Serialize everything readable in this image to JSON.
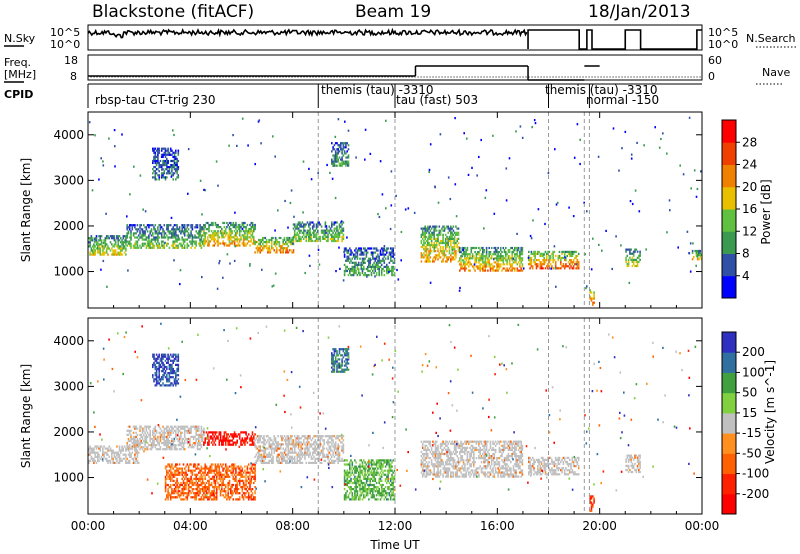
{
  "header": {
    "station": "Blackstone (fitACF)",
    "beam": "Beam 19",
    "date": "18/Jan/2013"
  },
  "side_labels": {
    "nsky": "N.Sky",
    "nsearch": "N.Search",
    "freq_line1": "Freq.",
    "freq_line2": "[MHz]",
    "nave": "Nave",
    "cpid": "CPID",
    "nsky_ticks": [
      "10^5",
      "10^0"
    ],
    "nsearch_ticks": [
      "10^5",
      "10^0"
    ],
    "freq_ticks": [
      "18",
      "8"
    ],
    "nave_ticks": [
      "60",
      "0"
    ]
  },
  "colors": {
    "power_scale": [
      "#0000ff",
      "#3050a8",
      "#3a9a50",
      "#60c040",
      "#e8c000",
      "#f08000",
      "#f04000",
      "#ff0000"
    ],
    "velocity_scale": [
      "#3030c0",
      "#3070a0",
      "#40a040",
      "#80d040",
      "#c0c0c0",
      "#ff9020",
      "#ff6000",
      "#ff2000",
      "#ff0000"
    ],
    "grey_scatter": "#c0c0c0"
  },
  "chart_data": [
    {
      "type": "line",
      "name": "noise-and-frequency-strips",
      "x_range_hours": [
        0,
        24
      ],
      "nsky_level": "near 10^5 throughout",
      "freq_mhz": [
        {
          "x": [
            0.0,
            12.8
          ],
          "y": 10
        },
        {
          "x": [
            12.8,
            17.2
          ],
          "y": 15
        },
        {
          "x": [
            17.2,
            19.4
          ],
          "y": 8
        },
        {
          "x": [
            19.4,
            20.0
          ],
          "y": 15
        }
      ]
    },
    {
      "type": "table",
      "name": "cpid-timeline",
      "segments": [
        {
          "start": 0.0,
          "label": "rbsp-tau CT-trig 230"
        },
        {
          "start": 9.0,
          "label": "themis (tau) -3310"
        },
        {
          "start": 12.0,
          "label": "tau (fast) 503"
        },
        {
          "start": 18.0,
          "label": "themis (tau) -3310"
        },
        {
          "start": 19.6,
          "label": "normal -150"
        }
      ],
      "vertical_marker_hours": [
        9.0,
        12.0,
        18.0,
        19.4,
        19.6
      ]
    },
    {
      "type": "heatmap",
      "name": "power",
      "xlabel": "",
      "ylabel": "Slant Range [km]",
      "xlim": [
        0,
        24
      ],
      "ylim": [
        200,
        4500
      ],
      "x_ticks": [
        "00:00",
        "04:00",
        "08:00",
        "12:00",
        "16:00",
        "20:00",
        "00:00"
      ],
      "y_ticks": [
        1000,
        2000,
        3000,
        4000
      ],
      "colorbar": {
        "label": "Power [dB]",
        "ticks": [
          4,
          8,
          12,
          16,
          20,
          24,
          28
        ],
        "range": [
          0,
          32
        ]
      },
      "regions": [
        {
          "t": [
            0.0,
            1.5
          ],
          "r": [
            1350,
            1800
          ],
          "level": 0.55
        },
        {
          "t": [
            1.5,
            4.5
          ],
          "r": [
            1500,
            2000
          ],
          "level": 0.45
        },
        {
          "t": [
            2.5,
            3.5
          ],
          "r": [
            3000,
            3700
          ],
          "level": 0.2
        },
        {
          "t": [
            4.5,
            6.5
          ],
          "r": [
            1550,
            2050
          ],
          "level": 0.7
        },
        {
          "t": [
            6.5,
            8.0
          ],
          "r": [
            1400,
            1750
          ],
          "level": 0.75
        },
        {
          "t": [
            8.0,
            10.0
          ],
          "r": [
            1650,
            2100
          ],
          "level": 0.45
        },
        {
          "t": [
            9.5,
            10.2
          ],
          "r": [
            3300,
            3800
          ],
          "level": 0.35
        },
        {
          "t": [
            10.0,
            12.0
          ],
          "r": [
            900,
            1500
          ],
          "level": 0.35
        },
        {
          "t": [
            13.0,
            14.5
          ],
          "r": [
            1200,
            2000
          ],
          "level": 0.7
        },
        {
          "t": [
            14.5,
            17.0
          ],
          "r": [
            1000,
            1500
          ],
          "level": 0.75
        },
        {
          "t": [
            17.2,
            19.2
          ],
          "r": [
            1050,
            1450
          ],
          "level": 0.85
        },
        {
          "t": [
            19.6,
            19.8
          ],
          "r": [
            250,
            600
          ],
          "level": 0.9
        },
        {
          "t": [
            21.0,
            21.6
          ],
          "r": [
            1100,
            1500
          ],
          "level": 0.6
        },
        {
          "t": [
            23.6,
            24.0
          ],
          "r": [
            1250,
            1450
          ],
          "level": 0.6
        }
      ]
    },
    {
      "type": "heatmap",
      "name": "velocity",
      "xlabel": "Time UT",
      "ylabel": "Slant Range [km]",
      "xlim": [
        0,
        24
      ],
      "ylim": [
        200,
        4500
      ],
      "x_ticks": [
        "00:00",
        "04:00",
        "08:00",
        "12:00",
        "16:00",
        "20:00",
        "00:00"
      ],
      "y_ticks": [
        1000,
        2000,
        3000,
        4000
      ],
      "colorbar": {
        "label": "Velocity [m s^-1]",
        "ticks": [
          200,
          100,
          50,
          15,
          -15,
          -50,
          -100,
          -200
        ],
        "range": [
          -250,
          250
        ]
      },
      "regions": [
        {
          "t": [
            0.0,
            2.0
          ],
          "r": [
            1300,
            1700
          ],
          "level": "ground"
        },
        {
          "t": [
            1.5,
            4.5
          ],
          "r": [
            1600,
            2100
          ],
          "level": "ground"
        },
        {
          "t": [
            2.5,
            3.5
          ],
          "r": [
            3000,
            3700
          ],
          "level": 0.05
        },
        {
          "t": [
            3.0,
            6.5
          ],
          "r": [
            500,
            1300
          ],
          "level": 0.75
        },
        {
          "t": [
            4.5,
            6.5
          ],
          "r": [
            1700,
            2000
          ],
          "level": 0.95
        },
        {
          "t": [
            6.5,
            10.0
          ],
          "r": [
            1300,
            1900
          ],
          "level": "ground"
        },
        {
          "t": [
            9.5,
            10.2
          ],
          "r": [
            3300,
            3800
          ],
          "level": 0.15
        },
        {
          "t": [
            10.0,
            12.0
          ],
          "r": [
            500,
            1400
          ],
          "level": 0.3
        },
        {
          "t": [
            13.0,
            17.0
          ],
          "r": [
            1000,
            1800
          ],
          "level": "ground"
        },
        {
          "t": [
            17.2,
            19.2
          ],
          "r": [
            1050,
            1450
          ],
          "level": "ground"
        },
        {
          "t": [
            19.6,
            19.8
          ],
          "r": [
            250,
            600
          ],
          "level": 0.85
        },
        {
          "t": [
            21.0,
            21.6
          ],
          "r": [
            1100,
            1500
          ],
          "level": "ground"
        }
      ]
    }
  ]
}
